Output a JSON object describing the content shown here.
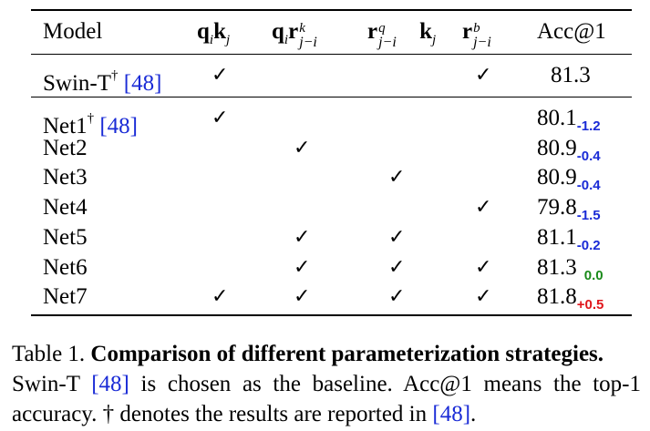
{
  "table": {
    "headers": {
      "model": "Model",
      "acc": "Acc@1"
    },
    "baseline": {
      "model": "Swin-T",
      "dagger": "†",
      "ref": "[48]",
      "acc": "81.3",
      "checks": [
        true,
        false,
        false,
        true
      ]
    },
    "rows": [
      {
        "model": "Net1",
        "dagger": "†",
        "ref": "[48]",
        "acc": "80.1",
        "delta": "-1.2",
        "delta_color": "#1a2bd6",
        "checks": [
          true,
          false,
          false,
          false
        ]
      },
      {
        "model": "Net2",
        "dagger": "",
        "ref": "",
        "acc": "80.9",
        "delta": "-0.4",
        "delta_color": "#1a2bd6",
        "checks": [
          false,
          true,
          false,
          false
        ]
      },
      {
        "model": "Net3",
        "dagger": "",
        "ref": "",
        "acc": "80.9",
        "delta": "-0.4",
        "delta_color": "#1a2bd6",
        "checks": [
          false,
          false,
          true,
          false
        ]
      },
      {
        "model": "Net4",
        "dagger": "",
        "ref": "",
        "acc": "79.8",
        "delta": "-1.5",
        "delta_color": "#1a2bd6",
        "checks": [
          false,
          false,
          false,
          true
        ]
      },
      {
        "model": "Net5",
        "dagger": "",
        "ref": "",
        "acc": "81.1",
        "delta": "-0.2",
        "delta_color": "#1a2bd6",
        "checks": [
          false,
          true,
          true,
          false
        ]
      },
      {
        "model": "Net6",
        "dagger": "",
        "ref": "",
        "acc": "81.3",
        "delta": "0.0",
        "delta_color": "#1a8a1a",
        "checks": [
          false,
          true,
          true,
          true
        ]
      },
      {
        "model": "Net7",
        "dagger": "",
        "ref": "",
        "acc": "81.8",
        "delta": "+0.5",
        "delta_color": "#e0161b",
        "checks": [
          true,
          true,
          true,
          true
        ]
      }
    ],
    "check_glyph": "✓"
  },
  "caption": {
    "label": "Table 1.",
    "title": "Comparison of different parameterization strategies.",
    "line2a": "Swin-T ",
    "line2ref": "[48]",
    "line2b": " is chosen as the baseline.  Acc@1 means the top-1",
    "line3a": "accuracy. † denotes the results are reported in ",
    "line3ref": "[48]",
    "line3b": "."
  },
  "colors": {
    "ref_blue": "#1a2bd6",
    "neg_blue": "#1a2bd6",
    "zero_green": "#1a8a1a",
    "pos_red": "#e0161b"
  }
}
